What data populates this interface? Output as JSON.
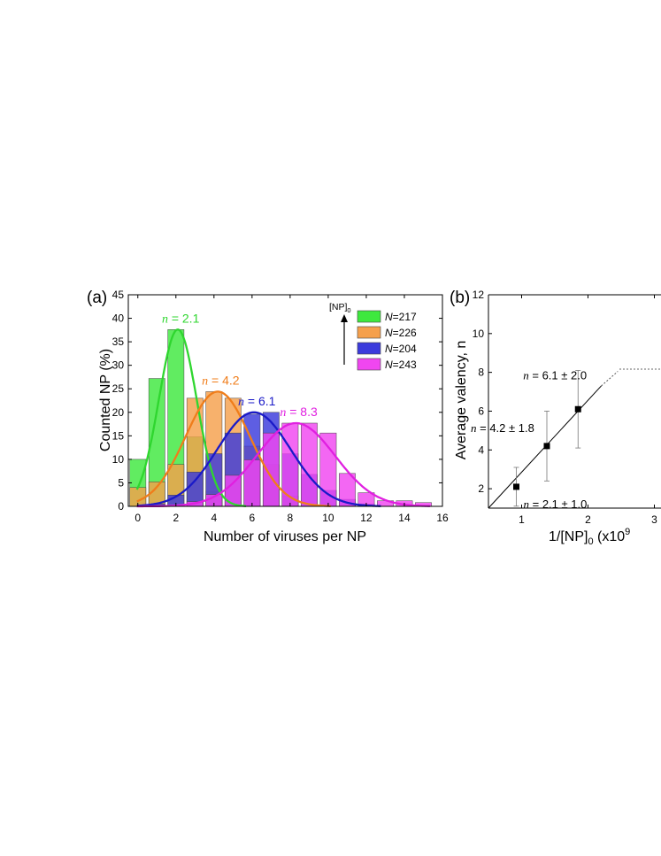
{
  "chart_data": [
    {
      "panel_label": "(a)",
      "type": "bar",
      "xlabel": "Number of viruses per NP",
      "ylabel": "Counted NP (%)",
      "xlim": [
        -0.5,
        16
      ],
      "ylim": [
        0,
        45
      ],
      "xticks": [
        "0",
        "2",
        "4",
        "6",
        "8",
        "10",
        "12",
        "14",
        "16"
      ],
      "yticks": [
        "0",
        "5",
        "10",
        "15",
        "20",
        "25",
        "30",
        "35",
        "40",
        "45"
      ],
      "x": [
        0,
        1,
        2,
        3,
        4,
        5,
        6,
        7,
        8,
        9,
        10,
        11,
        12,
        13,
        14,
        15
      ],
      "legend_arrow_label": "[NP]",
      "legend_arrow_sub": "0",
      "series": [
        {
          "name": "N=217",
          "name_italic": "N",
          "name_rest": "=217",
          "color": "#3ee83e",
          "line_color": "#2fd62f",
          "values": [
            10,
            27.2,
            37.6,
            14.8,
            3.2,
            0,
            0,
            0,
            0,
            0,
            0,
            0,
            0,
            0,
            0,
            0
          ],
          "mean": 2.1,
          "label_n": "n",
          "label_value": " = 2.1"
        },
        {
          "name": "N=226",
          "name_italic": "N",
          "name_rest": "=226",
          "color": "#f5a04c",
          "line_color": "#f07d1a",
          "values": [
            4,
            5.2,
            8.9,
            23,
            24.4,
            23,
            12.8,
            8.9,
            2.2,
            0,
            0,
            0,
            0,
            0,
            0,
            0
          ],
          "mean": 4.2,
          "label_n": "n",
          "label_value": " = 4.2"
        },
        {
          "name": "N=204",
          "name_italic": "N",
          "name_rest": "=204",
          "color": "#3b3bdc",
          "line_color": "#1a1ac8",
          "values": [
            0,
            0.5,
            2.4,
            7.3,
            11.2,
            15.6,
            19.6,
            20,
            11.2,
            6.8,
            3.4,
            1.5,
            0.5,
            0,
            0,
            0
          ],
          "mean": 6.1,
          "label_n": "n",
          "label_value": " = 6.1"
        },
        {
          "name": "N=243",
          "name_italic": "N",
          "name_rest": "=243",
          "color": "#f046f0",
          "line_color": "#e020e0",
          "values": [
            0,
            0,
            0,
            1,
            2.5,
            6.6,
            9.9,
            15.6,
            17.7,
            17.7,
            15.6,
            7,
            2.9,
            1.2,
            1.2,
            0.8
          ],
          "mean": 8.3,
          "label_n": "n",
          "label_value": " = 8.3"
        }
      ]
    },
    {
      "panel_label": "(b)",
      "type": "scatter",
      "xlabel": "1/[NP]",
      "xlabel_sub": "0",
      "xlabel_rest": " (x10",
      "xlabel_sup": "9",
      "ylabel": "Average valency,  n",
      "xlim": [
        0.5,
        3.1
      ],
      "ylim": [
        1,
        12
      ],
      "xticks": [
        "1",
        "2",
        "3"
      ],
      "yticks": [
        "2",
        "4",
        "6",
        "8",
        "10",
        "12"
      ],
      "points": [
        {
          "x": 0.92,
          "y": 2.1,
          "err": 1.0,
          "label_n": "n",
          "label_value": " = 2.1 ± 1.0"
        },
        {
          "x": 1.38,
          "y": 4.2,
          "err": 1.8,
          "label_n": "n",
          "label_value": " = 4.2 ± 1.8"
        },
        {
          "x": 1.85,
          "y": 6.1,
          "err": 2.0,
          "label_n": "n",
          "label_value": " = 6.1 ± 2.0"
        }
      ],
      "fit_line": {
        "from": [
          0.5,
          1.0
        ],
        "solid_to": [
          2.2,
          7.3
        ],
        "dashed_to": [
          2.45,
          8.05
        ]
      }
    }
  ]
}
